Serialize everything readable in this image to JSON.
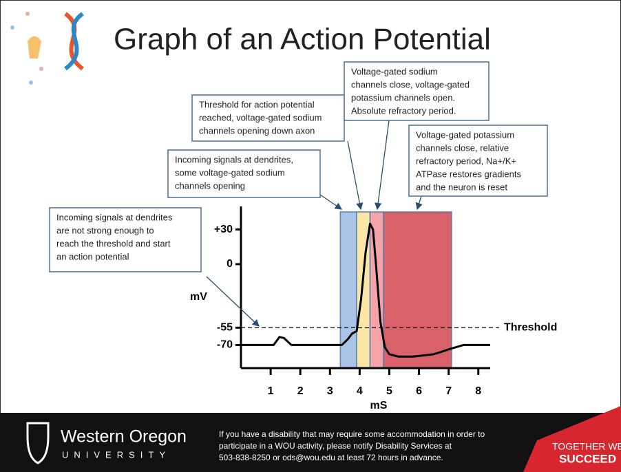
{
  "slide_title": "Graph of an Action Potential",
  "chart_data": {
    "type": "line",
    "ylabel": "mV",
    "xlabel": "mS",
    "xlim": [
      0,
      8.4
    ],
    "xticks": [
      1,
      2,
      3,
      4,
      5,
      6,
      7,
      8
    ],
    "ylim": [
      -90,
      50
    ],
    "yticks": [
      {
        "value": 30,
        "label": "+30"
      },
      0,
      -55,
      -70
    ],
    "threshold": {
      "value": -55,
      "label": "Threshold"
    },
    "series": [
      {
        "color": "#000000",
        "x": [
          0,
          1.1,
          1.3,
          1.45,
          1.7,
          2.5,
          3.4,
          3.6,
          3.75,
          3.9,
          4.05,
          4.2,
          4.35,
          4.45,
          4.55,
          4.7,
          4.85,
          5.0,
          5.3,
          5.8,
          6.5,
          7.1,
          7.5,
          8.4
        ],
        "values": [
          -70,
          -70,
          -63,
          -64,
          -70,
          -70,
          -70,
          -65,
          -60,
          -58,
          -30,
          10,
          35,
          30,
          0,
          -50,
          -72,
          -78,
          -80,
          -80,
          -78,
          -73,
          -70,
          -70
        ]
      }
    ],
    "regions": [
      {
        "start": 3.35,
        "end": 3.9,
        "color": "#a9c4e6"
      },
      {
        "start": 3.9,
        "end": 4.35,
        "color": "#fbe6a6"
      },
      {
        "start": 4.35,
        "end": 4.8,
        "color": "#f4a3a8"
      },
      {
        "start": 4.8,
        "end": 7.1,
        "color": "#d9616a"
      }
    ]
  },
  "annotations": [
    {
      "lines": [
        "Incoming signals at dendrites",
        "are not strong enough to",
        "reach the threshold and start",
        "an action potential"
      ]
    },
    {
      "lines": [
        "Incoming signals at dendrites,",
        "some voltage-gated sodium",
        "channels opening"
      ]
    },
    {
      "lines": [
        "Threshold for action potential",
        "reached, voltage-gated sodium",
        "channels opening down axon"
      ]
    },
    {
      "lines": [
        "Voltage-gated sodium",
        "channels close, voltage-gated",
        "potassium channels open.",
        "Absolute refractory period."
      ]
    },
    {
      "lines": [
        "Voltage-gated potassium",
        "channels close, relative",
        "refractory period, Na+/K+",
        "ATPase restores gradients",
        "and the neuron is reset"
      ]
    }
  ],
  "footer": {
    "university": "Western Oregon",
    "university_sub": "UNIVERSITY",
    "notice": [
      "If you have a disability that may require some accommodation in order to",
      "participate in a WOU activity, please notify Disability Services at",
      "503-838-8250 or ods@wou.edu at least 72 hours in advance."
    ],
    "slogan": [
      "TOGETHER WE",
      "SUCCEED"
    ]
  }
}
